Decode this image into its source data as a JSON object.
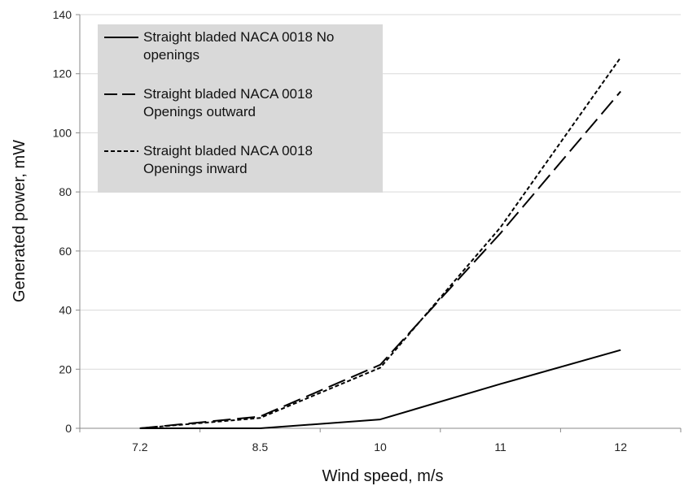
{
  "chart_data": {
    "type": "line",
    "title": "",
    "xlabel": "Wind speed, m/s",
    "ylabel": "Generated power, mW",
    "categories": [
      "7.2",
      "8.5",
      "10",
      "11",
      "12"
    ],
    "ylim": [
      0,
      140
    ],
    "yticks": [
      0,
      20,
      40,
      60,
      80,
      100,
      120,
      140
    ],
    "grid": "horizontal",
    "legend_position": "top-left",
    "series": [
      {
        "name_lines": [
          "Straight bladed NACA 0018 No",
          "openings"
        ],
        "style": "solid",
        "color": "#000000",
        "values": [
          0,
          0,
          3,
          15,
          26.5
        ]
      },
      {
        "name_lines": [
          "Straight bladed NACA 0018",
          "Openings outward"
        ],
        "style": "long-dash",
        "color": "#000000",
        "values": [
          0,
          4,
          21.5,
          66,
          114
        ]
      },
      {
        "name_lines": [
          "Straight bladed NACA 0018",
          "Openings inward"
        ],
        "style": "short-dash",
        "color": "#000000",
        "values": [
          0,
          3.5,
          20.5,
          68,
          125.5
        ]
      }
    ],
    "colors": {
      "legend_background": "#d9d9d9",
      "gridline": "#d9d9d9",
      "axis": "#888888"
    }
  }
}
